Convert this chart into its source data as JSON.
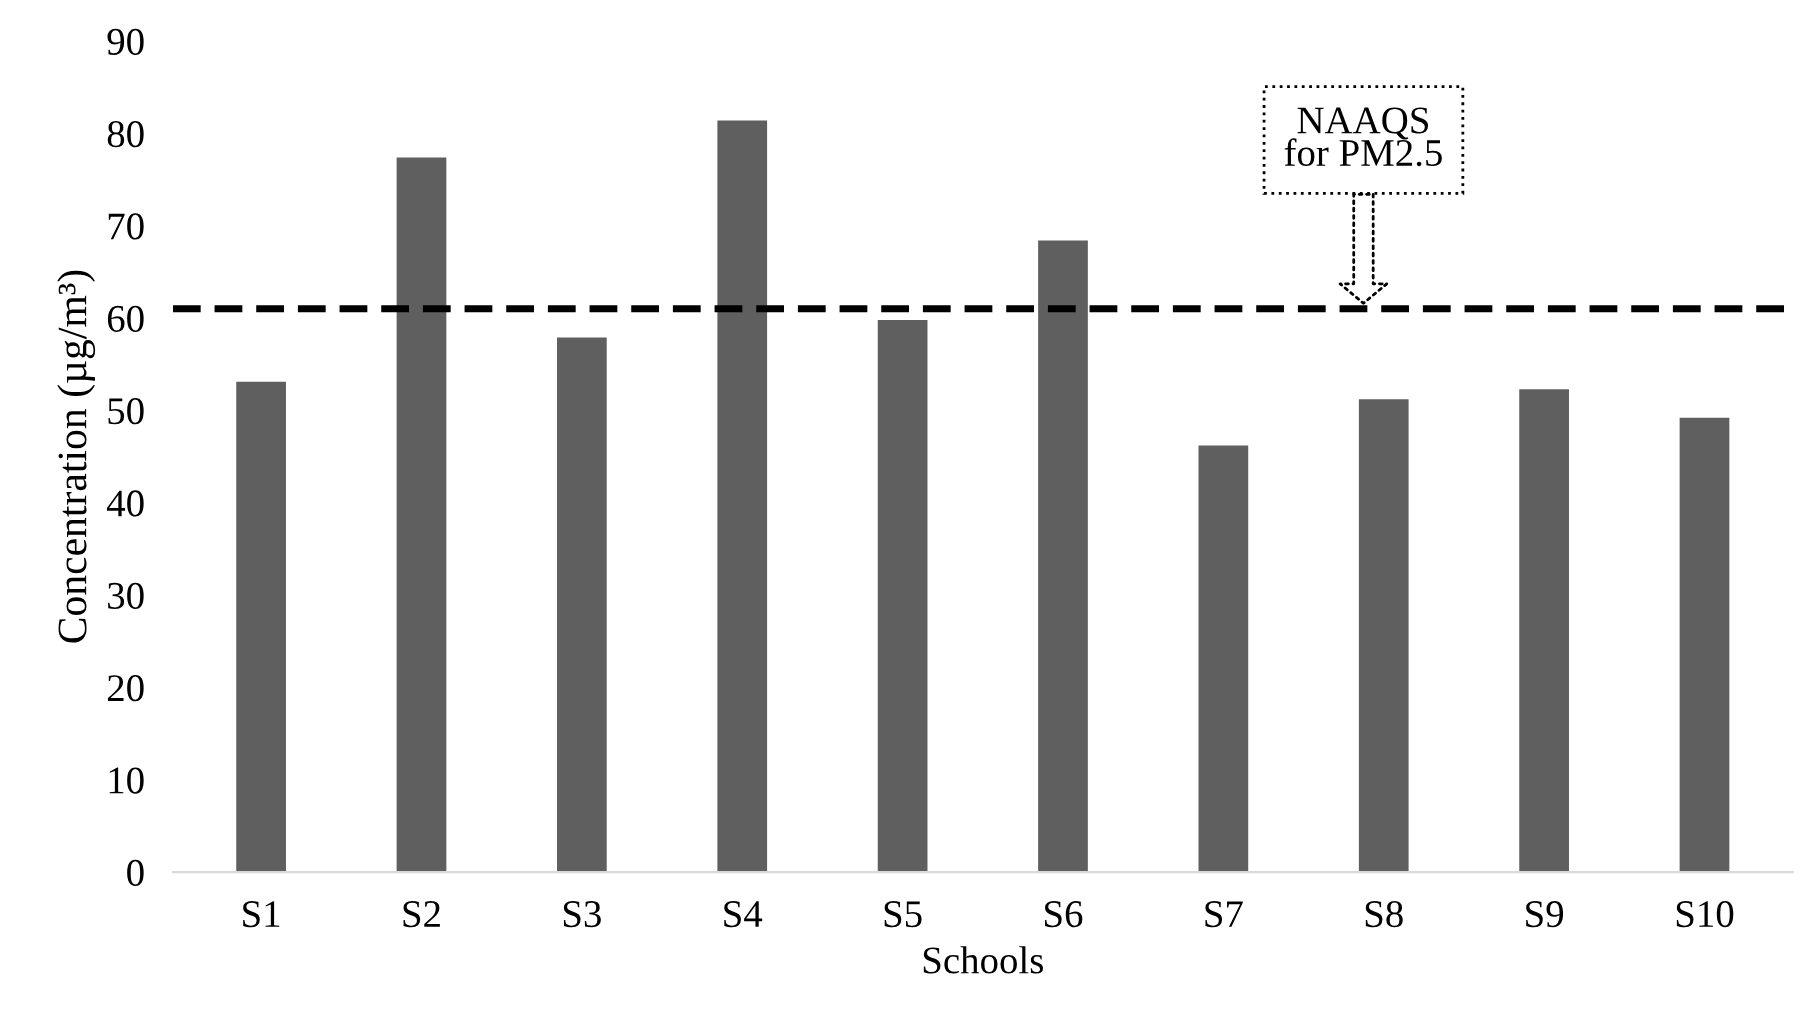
{
  "chart_data": {
    "type": "bar",
    "xlabel": "Schools",
    "ylabel": "Concentration (µg/m³)",
    "categories": [
      "S1",
      "S2",
      "S3",
      "S4",
      "S5",
      "S6",
      "S7",
      "S8",
      "S9",
      "S10"
    ],
    "values": [
      53.1,
      77.4,
      57.9,
      81.4,
      59.8,
      68.4,
      46.2,
      51.2,
      52.3,
      49.2
    ],
    "color": "#5f5f5f",
    "ylim": [
      0,
      90
    ],
    "yticks": [
      0,
      10,
      20,
      30,
      40,
      50,
      60,
      70,
      80,
      90
    ],
    "grid": false,
    "ref_lines": [
      {
        "axis": "y",
        "value": 61,
        "color": "#000000",
        "line_style": "dashed"
      }
    ],
    "annotations": [
      "NAAQS\nfor PM2.5"
    ]
  }
}
